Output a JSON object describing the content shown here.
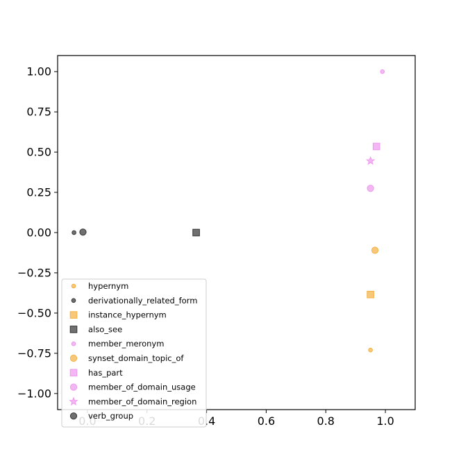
{
  "chart_data": {
    "type": "scatter",
    "title": "",
    "xlabel": "",
    "ylabel": "",
    "xlim": [
      -0.1,
      1.1
    ],
    "ylim": [
      -1.1,
      1.1
    ],
    "x_ticks": [
      0.0,
      0.2,
      0.4,
      0.6,
      0.8,
      1.0
    ],
    "x_tick_labels": [
      "0.0",
      "0.2",
      "0.4",
      "0.6",
      "0.8",
      "1.0"
    ],
    "y_ticks": [
      1.0,
      0.75,
      0.5,
      0.25,
      0.0,
      -0.25,
      -0.5,
      -0.75,
      -1.0
    ],
    "y_tick_labels": [
      "1.00",
      "0.75",
      "0.50",
      "0.25",
      "0.00",
      "−0.25",
      "−0.50",
      "−0.75",
      "−1.00"
    ],
    "grid": false,
    "legend_position": "lower-left",
    "series": [
      {
        "name": "hypernym",
        "marker": "circle",
        "size": "small",
        "color": "#f5b041",
        "points": [
          [
            0.95,
            -0.73
          ]
        ]
      },
      {
        "name": "derivationally_related_form",
        "marker": "circle",
        "size": "small",
        "color": "#333333",
        "points": [
          [
            -0.045,
            0.0
          ]
        ]
      },
      {
        "name": "instance_hypernym",
        "marker": "square",
        "size": "large",
        "color": "#f5b041",
        "points": [
          [
            0.95,
            -0.385
          ]
        ]
      },
      {
        "name": "also_see",
        "marker": "square",
        "size": "large",
        "color": "#333333",
        "points": [
          [
            0.365,
            0.0
          ]
        ]
      },
      {
        "name": "member_meronym",
        "marker": "circle",
        "size": "small",
        "color": "#ee99ee",
        "points": [
          [
            0.99,
            1.0
          ]
        ]
      },
      {
        "name": "synset_domain_topic_of",
        "marker": "circle",
        "size": "large",
        "color": "#f5b041",
        "points": [
          [
            0.965,
            -0.11
          ]
        ]
      },
      {
        "name": "has_part",
        "marker": "square",
        "size": "large",
        "color": "#ee99ee",
        "points": [
          [
            0.97,
            0.535
          ]
        ]
      },
      {
        "name": "member_of_domain_usage",
        "marker": "circle",
        "size": "large",
        "color": "#ee99ee",
        "points": [
          [
            0.95,
            0.275
          ]
        ]
      },
      {
        "name": "member_of_domain_region",
        "marker": "star",
        "size": "large",
        "color": "#ee99ee",
        "points": [
          [
            0.95,
            0.445
          ]
        ]
      },
      {
        "name": "verb_group",
        "marker": "circle",
        "size": "large",
        "color": "#333333",
        "points": [
          [
            -0.015,
            0.003
          ]
        ]
      }
    ]
  }
}
